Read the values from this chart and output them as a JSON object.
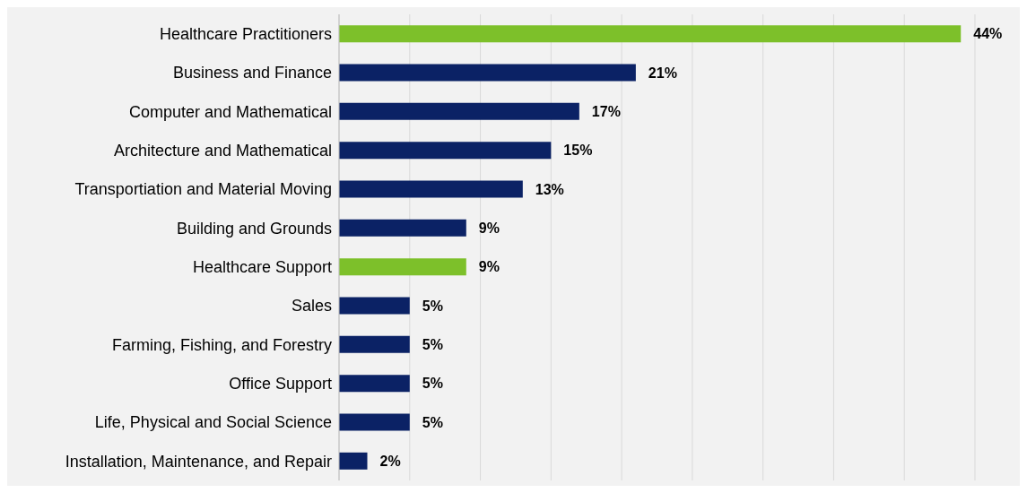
{
  "chart_data": {
    "type": "bar",
    "orientation": "horizontal",
    "categories": [
      "Healthcare Practitioners",
      "Business and Finance",
      "Computer and Mathematical",
      "Architecture and Mathematical",
      "Transportiation and Material Moving",
      "Building and Grounds",
      "Healthcare Support",
      "Sales",
      "Farming, Fishing, and Forestry",
      "Office Support",
      "Life, Physical and Social Science",
      "Installation, Maintenance, and Repair"
    ],
    "values": [
      44,
      21,
      17,
      15,
      13,
      9,
      9,
      5,
      5,
      5,
      5,
      2
    ],
    "colors": [
      "#7dc02a",
      "#0b2265",
      "#0b2265",
      "#0b2265",
      "#0b2265",
      "#0b2265",
      "#7dc02a",
      "#0b2265",
      "#0b2265",
      "#0b2265",
      "#0b2265",
      "#0b2265"
    ],
    "value_labels": [
      "44%",
      "21%",
      "17%",
      "15%",
      "13%",
      "9%",
      "9%",
      "5%",
      "5%",
      "5%",
      "5%",
      "2%"
    ],
    "xlim": [
      0,
      45
    ],
    "xticks": [
      {
        "value": 0,
        "label": null
      },
      {
        "value": 5,
        "label": null
      },
      {
        "value": 10,
        "label": null
      },
      {
        "value": 15,
        "label": null
      },
      {
        "value": 20,
        "label": null
      },
      {
        "value": 25,
        "label": null
      },
      {
        "value": 30,
        "label": null
      },
      {
        "value": 35,
        "label": null
      },
      {
        "value": 40,
        "label": null
      },
      {
        "value": 45,
        "label": null
      }
    ],
    "grid": "x",
    "tick_labels": "y"
  }
}
